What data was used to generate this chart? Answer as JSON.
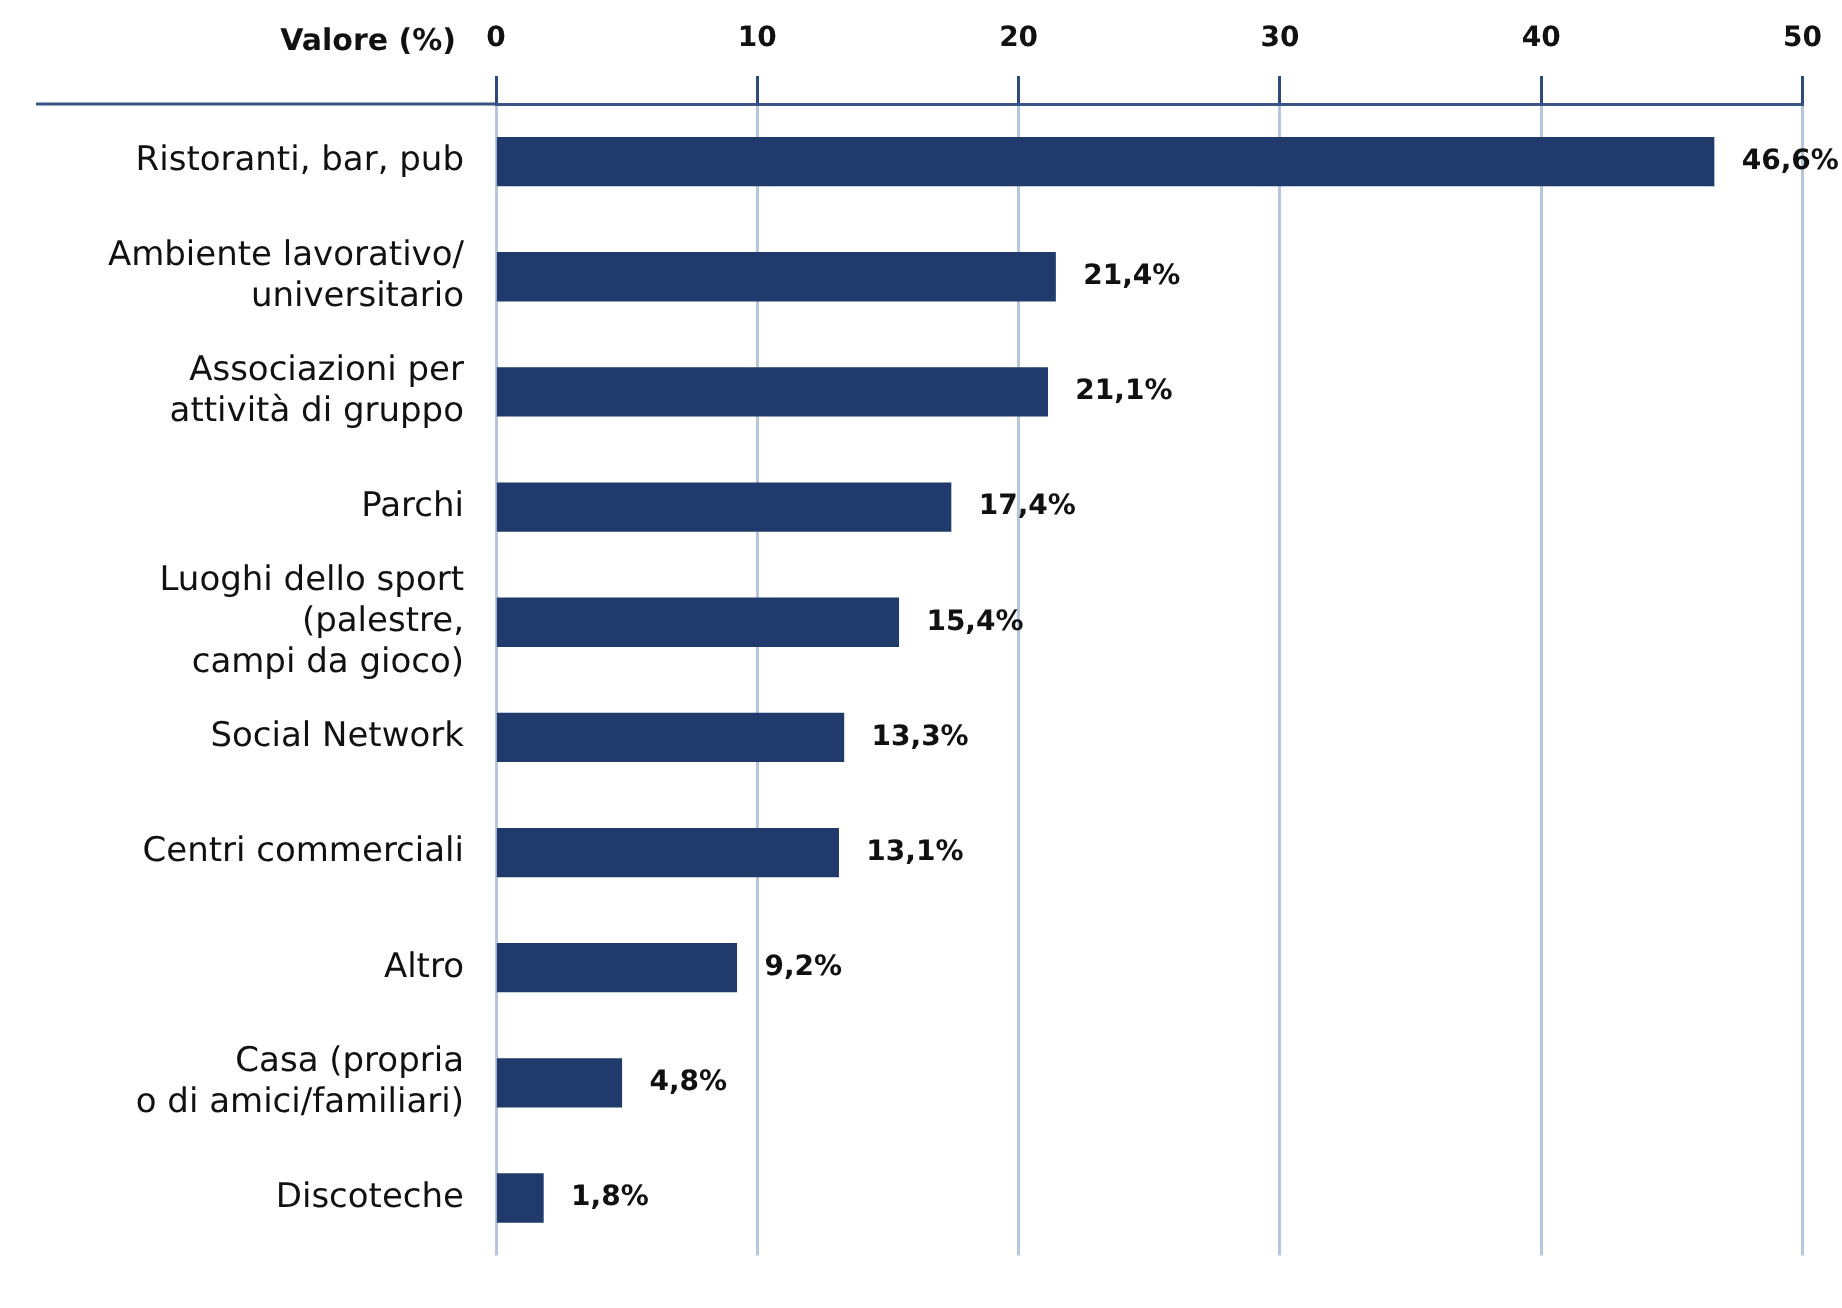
{
  "chart_data": {
    "type": "bar",
    "orientation": "horizontal",
    "xlabel": "Valore (%)",
    "categories": [
      "Ristoranti, bar, pub",
      "Ambiente lavorativo/\nuniversitario",
      "Associazioni per\nattività di gruppo",
      "Parchi",
      "Luoghi dello sport\n(palestre,\ncampi da gioco)",
      "Social Network",
      "Centri commerciali",
      "Altro",
      "Casa (propria\no di amici/familiari)",
      "Discoteche"
    ],
    "values": [
      46.6,
      21.4,
      21.1,
      17.4,
      15.4,
      13.3,
      13.1,
      9.2,
      4.8,
      1.8
    ],
    "value_labels": [
      "46,6%",
      "21,4%",
      "21,1%",
      "17,4%",
      "15,4%",
      "13,3%",
      "13,1%",
      "9,2%",
      "4,8%",
      "1,8%"
    ],
    "color": "#1f3a6b",
    "xlim": [
      0,
      50
    ],
    "xticks": [
      0,
      10,
      20,
      30,
      40,
      50
    ],
    "grid": "x"
  }
}
